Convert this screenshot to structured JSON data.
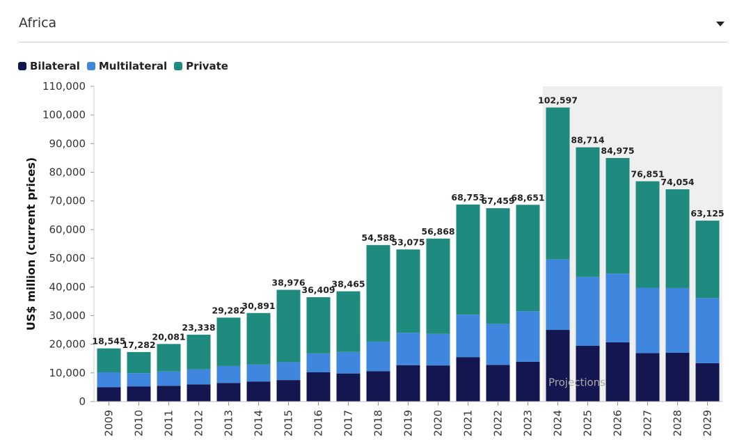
{
  "filter": {
    "region": "Africa",
    "icon": "chevron-down-icon"
  },
  "colors": {
    "Bilateral": "#14174f",
    "Multilateral": "#3f86de",
    "Private": "#1f8a7e",
    "projection_bg": "#efefef"
  },
  "chart_data": {
    "type": "bar",
    "stacked": true,
    "title": "",
    "xlabel": "",
    "ylabel": "US$ million (current prices)",
    "ylim": [
      0,
      110000
    ],
    "yticks": [
      0,
      10000,
      20000,
      30000,
      40000,
      50000,
      60000,
      70000,
      80000,
      90000,
      100000,
      110000
    ],
    "ytick_labels": [
      "0",
      "10,000",
      "20,000",
      "30,000",
      "40,000",
      "50,000",
      "60,000",
      "70,000",
      "80,000",
      "90,000",
      "100,000",
      "110,000"
    ],
    "legend_position": "top-left",
    "categories": [
      "2009",
      "2010",
      "2011",
      "2012",
      "2013",
      "2014",
      "2015",
      "2016",
      "2017",
      "2018",
      "2019",
      "2020",
      "2021",
      "2022",
      "2023",
      "2024",
      "2025",
      "2026",
      "2027",
      "2028",
      "2029"
    ],
    "series": [
      {
        "name": "Bilateral",
        "values": [
          5000,
          5300,
          5500,
          6000,
          6500,
          7000,
          7500,
          10200,
          9800,
          10600,
          12700,
          12600,
          15500,
          12800,
          13900,
          25000,
          19500,
          20700,
          16900,
          17000,
          13400
        ]
      },
      {
        "name": "Multilateral",
        "values": [
          5200,
          4600,
          5000,
          5200,
          5900,
          5900,
          6200,
          6600,
          7500,
          10300,
          11300,
          11000,
          14800,
          14300,
          17600,
          24600,
          24000,
          23900,
          22800,
          22600,
          22700
        ]
      },
      {
        "name": "Private",
        "values": [
          8345,
          7382,
          9581,
          12138,
          16882,
          17991,
          25276,
          19609,
          21165,
          33688,
          29075,
          33268,
          38453,
          40359,
          37151,
          52997,
          45214,
          40375,
          37151,
          34454,
          27025
        ]
      }
    ],
    "totals": [
      18545,
      17282,
      20081,
      23338,
      29282,
      30891,
      38976,
      36409,
      38465,
      54588,
      53075,
      56868,
      68753,
      67459,
      68651,
      102597,
      88714,
      84975,
      76851,
      74054,
      63125
    ],
    "total_labels": [
      "18,545",
      "17,282",
      "20,081",
      "23,338",
      "29,282",
      "30,891",
      "38,976",
      "36,409",
      "38,465",
      "54,588",
      "53,075",
      "56,868",
      "68,753",
      "67,459",
      "68,651",
      "102,597",
      "88,714",
      "84,975",
      "76,851",
      "74,054",
      "63,125"
    ],
    "projection": {
      "label": "Projections",
      "from": "2024",
      "to": "2029"
    }
  }
}
